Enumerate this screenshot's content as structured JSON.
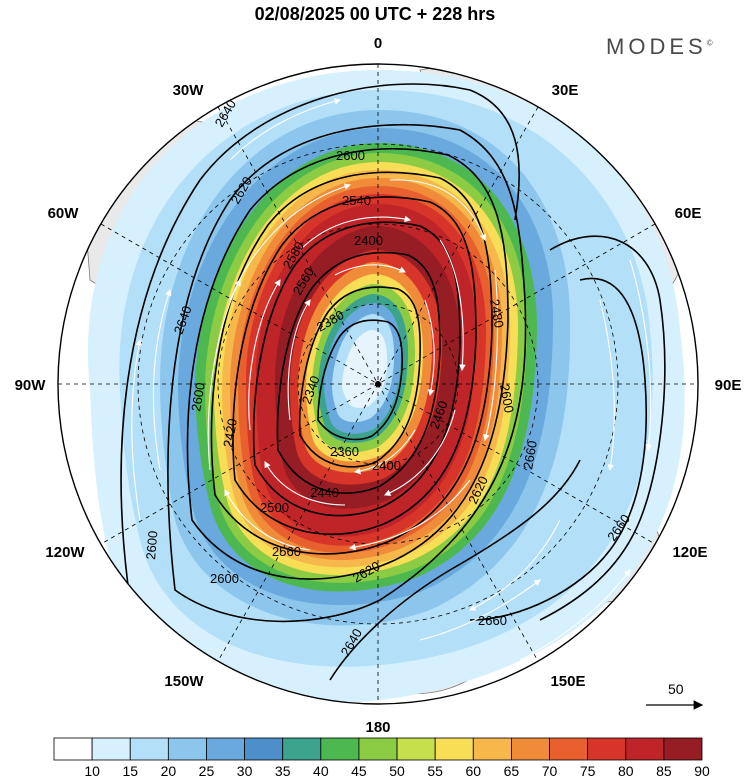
{
  "title": "02/08/2025  00 UTC  + 228 hrs",
  "brand": "MODES",
  "brand_mark": "©",
  "longitude_labels": {
    "n": "0",
    "ne1": "30E",
    "ne2": "60E",
    "e": "90E",
    "se1": "120E",
    "se2": "150E",
    "s": "180",
    "sw2": "150W",
    "sw1": "120W",
    "w": "90W",
    "nw2": "60W",
    "nw1": "30W"
  },
  "contour_labels": [
    "2640",
    "2620",
    "2600",
    "2580",
    "2560",
    "2540",
    "2520",
    "2500",
    "2480",
    "2460",
    "2440",
    "2420",
    "2400",
    "2380",
    "2360",
    "2340",
    "2660",
    "2660",
    "2660",
    "2620",
    "2640",
    "2600",
    "2600",
    "2560",
    "2600",
    "2640"
  ],
  "vector_scale_label": "50",
  "colorbar": {
    "ticks": [
      "10",
      "15",
      "20",
      "25",
      "30",
      "35",
      "40",
      "45",
      "50",
      "55",
      "60",
      "65",
      "70",
      "75",
      "80",
      "85",
      "90"
    ],
    "colors": [
      "#ffffff",
      "#d6f0fd",
      "#b3e0f8",
      "#8cc6ec",
      "#6aa9dd",
      "#4d8fc9",
      "#3ca48d",
      "#4db84f",
      "#8ccc45",
      "#c6df4d",
      "#f8dd57",
      "#f6b84a",
      "#f08c39",
      "#e8602e",
      "#d8352a",
      "#bf2428",
      "#961d23"
    ]
  },
  "map": {
    "projection": "north polar stereographic",
    "field": "500 hPa wind speed (shaded) and geopotential height (contours)",
    "jet_core_speed_max": 90,
    "vortex_center_height": 2340
  }
}
